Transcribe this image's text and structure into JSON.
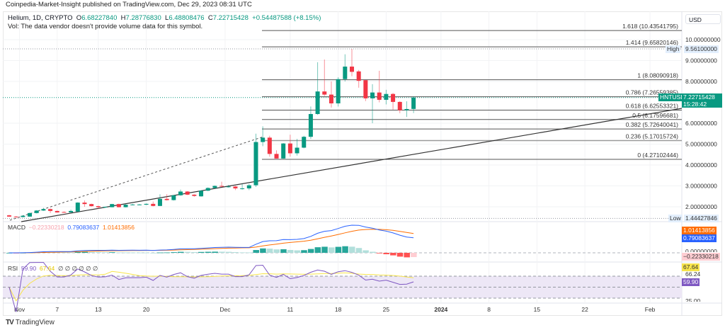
{
  "header": {
    "published": "Coinpedia-Market-Insight published on TradingView.com, Dec 29, 2023 08:31 UTC"
  },
  "legend": {
    "symbol": "Helium, 1D, CRYPTO",
    "open_label": "O",
    "open": "6.68227840",
    "high_label": "H",
    "high": "7.28776830",
    "low_label": "L",
    "low": "6.48808476",
    "close_label": "C",
    "close": "7.22715428",
    "change": "+0.54487588 (+8.15%)",
    "vol_note": "Vol: The data vendor doesn't provide volume data for this symbol."
  },
  "price_axis": {
    "currency": "USD",
    "ticks": [
      "10.00000000",
      "9.00000000",
      "8.00000000",
      "6.00000000",
      "5.00000000",
      "4.00000000",
      "3.00000000",
      "2.00000000"
    ],
    "high_label": "High",
    "high_value": "9.56100000",
    "low_label": "Low",
    "low_value": "1.44427846",
    "last_symbol": "HNTUSD",
    "last_value": "7.22715428",
    "countdown": "15:28:42"
  },
  "fib_levels": [
    {
      "label": "1.618 (10.43541795)",
      "ratio": 1.618,
      "price": 10.43541795
    },
    {
      "label": "1.414 (9.65820146)",
      "ratio": 1.414,
      "price": 9.65820146
    },
    {
      "label": "1 (8.08090918)",
      "ratio": 1,
      "price": 8.08090918
    },
    {
      "label": "0.786 (7.26559385)",
      "ratio": 0.786,
      "price": 7.26559385
    },
    {
      "label": "0.618 (6.62553321)",
      "ratio": 0.618,
      "price": 6.62553321
    },
    {
      "label": "0.5 (6.17596681)",
      "ratio": 0.5,
      "price": 6.17596681
    },
    {
      "label": "0.382 (5.72640041)",
      "ratio": 0.382,
      "price": 5.72640041
    },
    {
      "label": "0.236 (5.17015724)",
      "ratio": 0.236,
      "price": 5.17015724
    },
    {
      "label": "0 (4.27102444)",
      "ratio": 0,
      "price": 4.27102444
    }
  ],
  "macd": {
    "title": "MACD",
    "hist": "−0.22330218",
    "macd": "0.79083637",
    "signal": "1.01413856",
    "axis": {
      "signal": "1.01413856",
      "macd": "0.79083637",
      "zero": "0.00000000",
      "hist": "−0.22330218"
    },
    "colors": {
      "macd": "#2962ff",
      "signal": "#ff6d00",
      "hist_up": "#26a69a",
      "hist_up_light": "#b2dfdb",
      "hist_down": "#ff5252",
      "hist_down_light": "#ffcdd2"
    }
  },
  "rsi": {
    "title": "RSI",
    "value": "59.90",
    "ma": "67.64",
    "na": [
      "∅",
      "∅",
      "∅",
      "∅",
      "∅",
      "∅"
    ],
    "axis": {
      "ma": "67.64",
      "mid": "66.24",
      "value": "59.90",
      "low": "25.00"
    },
    "colors": {
      "rsi": "#7e57c2",
      "ma": "#f7e44b",
      "band": "#ede7f6"
    }
  },
  "time_axis": [
    "Nov",
    "7",
    "13",
    "20",
    "Dec",
    "11",
    "18",
    "25",
    "2024",
    "8",
    "15",
    "22",
    "Feb"
  ],
  "footer": {
    "brand": "TradingView"
  },
  "colors": {
    "up": "#089981",
    "down": "#f23645"
  },
  "chart_data": {
    "type": "candlestick",
    "symbol": "HNTUSD",
    "interval": "1D",
    "ylim": [
      1.0,
      10.8
    ],
    "columns": [
      "date",
      "open",
      "high",
      "low",
      "close"
    ],
    "candles": [
      [
        "2023-10-31",
        1.59,
        1.62,
        1.52,
        1.53
      ],
      [
        "2023-11-01",
        1.53,
        1.56,
        1.5,
        1.52
      ],
      [
        "2023-11-02",
        1.51,
        1.6,
        1.49,
        1.57
      ],
      [
        "2023-11-03",
        1.53,
        1.72,
        1.52,
        1.7
      ],
      [
        "2023-11-04",
        1.7,
        1.84,
        1.68,
        1.82
      ],
      [
        "2023-11-05",
        1.82,
        1.95,
        1.8,
        1.89
      ],
      [
        "2023-11-06",
        1.89,
        1.92,
        1.7,
        1.8
      ],
      [
        "2023-11-07",
        1.8,
        1.82,
        1.72,
        1.73
      ],
      [
        "2023-11-08",
        1.75,
        1.78,
        1.71,
        1.73
      ],
      [
        "2023-11-09",
        1.73,
        1.86,
        1.72,
        1.8
      ],
      [
        "2023-11-10",
        1.77,
        2.22,
        1.76,
        2.2
      ],
      [
        "2023-11-11",
        2.2,
        2.3,
        2.0,
        2.13
      ],
      [
        "2023-11-12",
        2.13,
        2.15,
        2.01,
        2.03
      ],
      [
        "2023-11-13",
        2.03,
        2.05,
        1.9,
        1.98
      ],
      [
        "2023-11-14",
        1.97,
        2.01,
        1.95,
        2.0
      ],
      [
        "2023-11-15",
        1.98,
        2.14,
        1.97,
        2.13
      ],
      [
        "2023-11-16",
        2.13,
        2.15,
        1.97,
        1.98
      ],
      [
        "2023-11-17",
        1.98,
        2.12,
        1.97,
        2.1
      ],
      [
        "2023-11-18",
        2.1,
        2.14,
        2.07,
        2.11
      ],
      [
        "2023-11-19",
        2.11,
        2.13,
        2.08,
        2.11
      ],
      [
        "2023-11-20",
        2.1,
        2.16,
        2.08,
        2.14
      ],
      [
        "2023-11-21",
        2.14,
        2.25,
        2.02,
        2.04
      ],
      [
        "2023-11-22",
        2.04,
        2.6,
        2.03,
        2.38
      ],
      [
        "2023-11-23",
        2.38,
        2.6,
        2.3,
        2.32
      ],
      [
        "2023-11-24",
        2.32,
        2.56,
        2.3,
        2.55
      ],
      [
        "2023-11-25",
        2.55,
        2.82,
        2.53,
        2.73
      ],
      [
        "2023-11-26",
        2.73,
        2.75,
        2.56,
        2.58
      ],
      [
        "2023-11-27",
        2.58,
        2.6,
        2.48,
        2.52
      ],
      [
        "2023-11-28",
        2.5,
        2.8,
        2.48,
        2.77
      ],
      [
        "2023-11-29",
        2.77,
        2.93,
        2.75,
        2.9
      ],
      [
        "2023-11-30",
        2.9,
        3.02,
        2.88,
        3.0
      ],
      [
        "2023-12-01",
        3.0,
        3.2,
        2.95,
        2.97
      ],
      [
        "2023-12-02",
        2.97,
        3.05,
        2.92,
        2.97
      ],
      [
        "2023-12-03",
        2.97,
        3.0,
        2.8,
        2.88
      ],
      [
        "2023-12-04",
        2.88,
        3.1,
        2.82,
        2.88
      ],
      [
        "2023-12-05",
        2.88,
        3.1,
        2.8,
        3.03
      ],
      [
        "2023-12-06",
        3.03,
        5.5,
        2.95,
        5.1
      ],
      [
        "2023-12-07",
        5.1,
        5.85,
        4.9,
        5.31
      ],
      [
        "2023-12-08",
        5.31,
        5.4,
        4.4,
        4.53
      ],
      [
        "2023-12-09",
        4.53,
        4.7,
        4.31,
        4.31
      ],
      [
        "2023-12-10",
        4.31,
        5.05,
        4.3,
        5.03
      ],
      [
        "2023-12-11",
        5.03,
        5.45,
        4.4,
        4.56
      ],
      [
        "2023-12-12",
        4.56,
        5.25,
        4.45,
        4.83
      ],
      [
        "2023-12-13",
        4.83,
        5.4,
        4.8,
        5.35
      ],
      [
        "2023-12-14",
        5.35,
        6.8,
        5.25,
        6.44
      ],
      [
        "2023-12-15",
        6.44,
        8.92,
        6.4,
        7.52
      ],
      [
        "2023-12-16",
        7.52,
        9.05,
        7.3,
        7.37
      ],
      [
        "2023-12-17",
        7.37,
        8.0,
        6.75,
        6.95
      ],
      [
        "2023-12-18",
        6.95,
        8.2,
        6.8,
        8.11
      ],
      [
        "2023-12-19",
        8.11,
        9.3,
        8.0,
        8.71
      ],
      [
        "2023-12-20",
        8.71,
        9.561,
        8.25,
        8.46
      ],
      [
        "2023-12-21",
        8.48,
        8.55,
        7.7,
        8.03
      ],
      [
        "2023-12-22",
        8.06,
        8.06,
        7.06,
        7.19
      ],
      [
        "2023-12-23",
        7.19,
        7.87,
        6.0,
        7.47
      ],
      [
        "2023-12-24",
        7.47,
        8.51,
        7.0,
        7.12
      ],
      [
        "2023-12-25",
        7.12,
        7.6,
        6.9,
        7.4
      ],
      [
        "2023-12-26",
        7.4,
        7.45,
        6.65,
        7.02
      ],
      [
        "2023-12-27",
        7.02,
        7.05,
        6.48,
        6.62
      ],
      [
        "2023-12-28",
        6.62,
        7.05,
        6.3,
        6.68
      ],
      [
        "2023-12-29",
        6.68228,
        7.28777,
        6.48808,
        7.22715
      ]
    ]
  }
}
